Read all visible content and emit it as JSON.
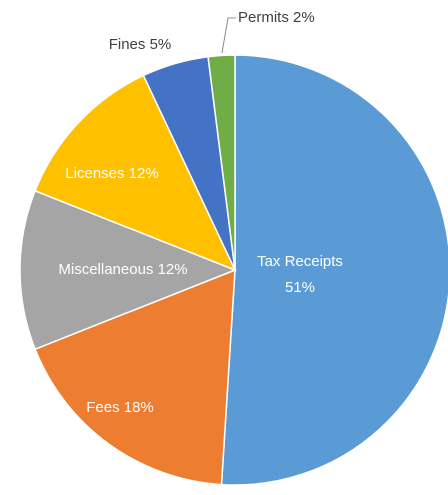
{
  "chart_data": {
    "type": "pie",
    "categories": [
      "Tax Receipts",
      "Fees",
      "Miscellaneous",
      "Licenses",
      "Fines",
      "Permits"
    ],
    "values": [
      51,
      18,
      12,
      12,
      5,
      2
    ],
    "value_labels": [
      "51%",
      "18%",
      "12%",
      "12%",
      "5%",
      "2%"
    ],
    "colors": [
      "#5b9bd5",
      "#ed7d31",
      "#a5a5a5",
      "#ffc000",
      "#4472c4",
      "#70ad47"
    ]
  }
}
